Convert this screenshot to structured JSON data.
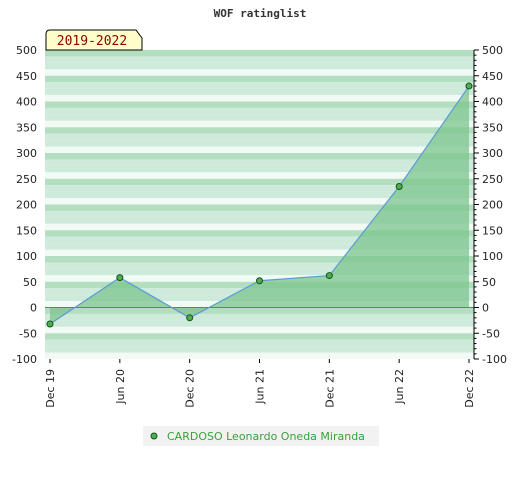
{
  "chart_data": {
    "type": "area",
    "title": "WOF ratinglist",
    "period_label": "2019-2022",
    "categories": [
      "Dec 19",
      "Jun 20",
      "Dec 20",
      "Jun 21",
      "Dec 21",
      "Jun 22",
      "Dec 22"
    ],
    "series": [
      {
        "name": "CARDOSO Leonardo Oneda Miranda",
        "values": [
          -32,
          58,
          -20,
          52,
          62,
          235,
          430
        ]
      }
    ],
    "ylim": [
      -100,
      500
    ],
    "yticks": [
      -100,
      -50,
      0,
      50,
      100,
      150,
      200,
      250,
      300,
      350,
      400,
      450,
      500
    ],
    "grid": true,
    "legend": "bottom-center",
    "colors": {
      "fill": "#7cc48e",
      "line": "#5b9bd5",
      "marker": "#4caf50",
      "zero_line": "#3aa03a",
      "band_dark": "#b3dfc0",
      "band_mid": "#cdeadb",
      "band_light": "#f2faf5",
      "badge_bg": "#ffffcc",
      "badge_text": "#8b0000",
      "legend_text": "#3aa03a"
    }
  }
}
